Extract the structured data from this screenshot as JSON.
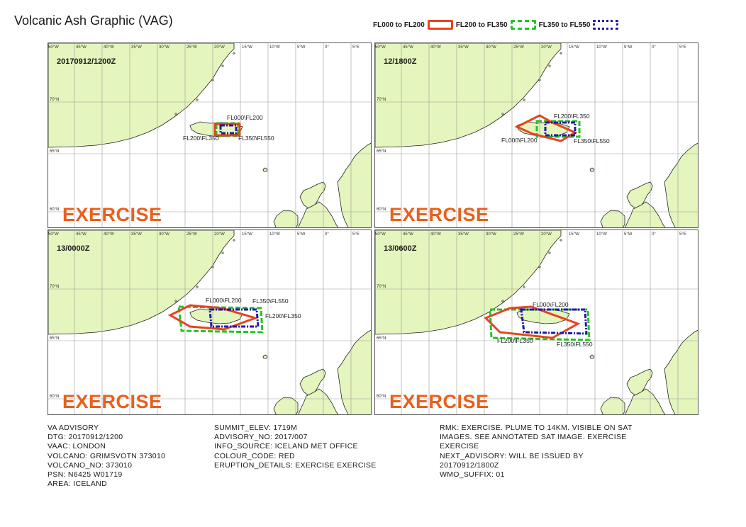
{
  "title": "Volcanic Ash Graphic (VAG)",
  "colors": {
    "land": "#e4f5bd",
    "sea": "#ffffff",
    "grid": "#9a9a9a",
    "coast": "#222222",
    "fl000_fl200": "#e8431f",
    "fl200_fl350": "#22c422",
    "fl350_fl550": "#1a1aa8",
    "exercise": "#e8601c"
  },
  "legend": [
    {
      "label": "FL000 to FL200",
      "color": "#e8431f",
      "style": "solid"
    },
    {
      "label": "FL200 to FL350",
      "color": "#22c422",
      "style": "dashed"
    },
    {
      "label": "FL350 to FL550",
      "color": "#1a1aa8",
      "style": "dashdot"
    }
  ],
  "graticule": {
    "lon_labels": [
      "50°W",
      "45°W",
      "40°W",
      "35°W",
      "30°W",
      "25°W",
      "20°W",
      "15°W",
      "10°W",
      "5°W",
      "0°",
      "5°E"
    ],
    "lat_labels": [
      "70°N",
      "65°N",
      "60°N"
    ]
  },
  "panels": [
    {
      "time": "20170912/1200Z",
      "exercise_label": "EXERCISE",
      "polygon_labels": [
        "FL000\\FL200",
        "FL200\\FL350",
        "FL350\\FL550"
      ]
    },
    {
      "time": "12/1800Z",
      "exercise_label": "EXERCISE",
      "polygon_labels": [
        "FL200\\FL350",
        "FL000\\FL200",
        "FL350\\FL550"
      ]
    },
    {
      "time": "13/0000Z",
      "exercise_label": "EXERCISE",
      "polygon_labels": [
        "FL000\\FL200",
        "FL350\\FL550",
        "FL200\\FL350"
      ]
    },
    {
      "time": "13/0600Z",
      "exercise_label": "EXERCISE",
      "polygon_labels": [
        "FL000\\FL200",
        "FL200\\FL350",
        "FL350\\FL550"
      ]
    }
  ],
  "advisory": {
    "col1": [
      "VA ADVISORY",
      "DTG: 20170912/1200",
      "VAAC: LONDON",
      "VOLCANO: GRIMSVOTN 373010",
      "VOLCANO_NO: 373010",
      "PSN: N6425 W01719",
      "AREA: ICELAND"
    ],
    "col2": [
      "SUMMIT_ELEV: 1719M",
      "ADVISORY_NO: 2017/007",
      "INFO_SOURCE: ICELAND MET OFFICE",
      "COLOUR_CODE: RED",
      "ERUPTION_DETAILS: EXERCISE EXERCISE"
    ],
    "col3": [
      "RMK: EXERCISE. PLUME TO 14KM. VISIBLE ON SAT",
      "IMAGES. SEE ANNOTATED SAT IMAGE. EXERCISE",
      "EXERCISE",
      "NEXT_ADVISORY: WILL BE ISSUED BY",
      "20170912/1800Z",
      "WMO_SUFFIX: 01"
    ]
  }
}
